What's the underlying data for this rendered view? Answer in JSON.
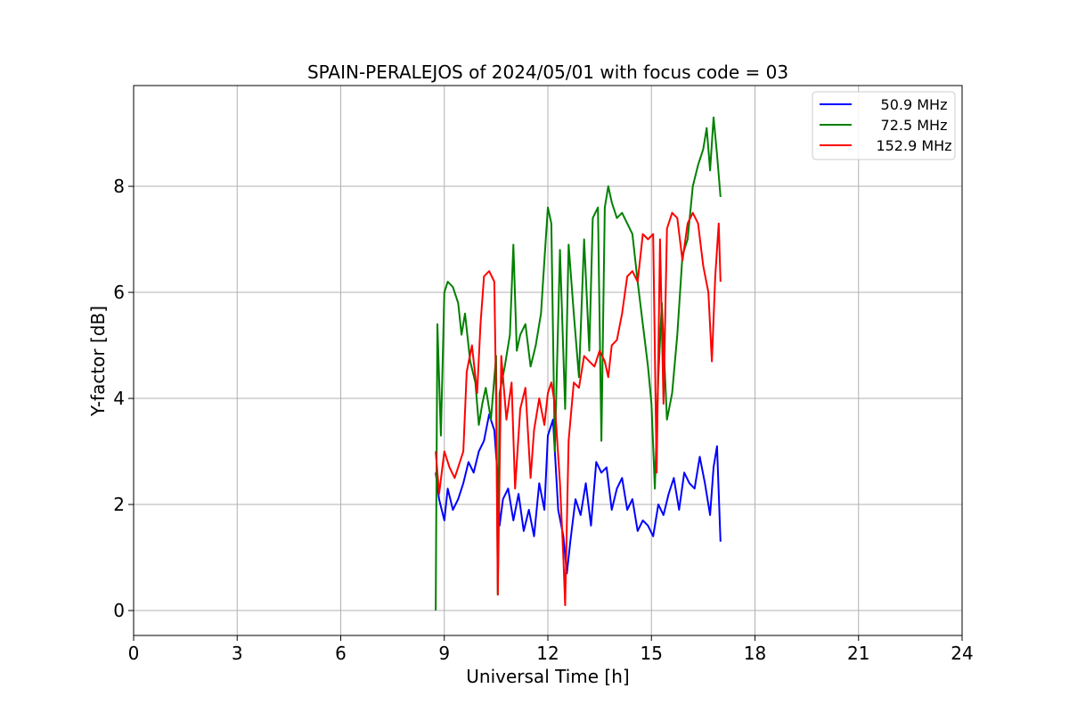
{
  "chart_data": {
    "type": "line",
    "title": "SPAIN-PERALEJOS of 2024/05/01 with focus code = 03",
    "xlabel": "Universal Time [h]",
    "ylabel": "Y-factor [dB]",
    "xlim": [
      0,
      24
    ],
    "ylim": [
      -0.47,
      9.9
    ],
    "xticks": [
      0,
      3,
      6,
      9,
      12,
      15,
      18,
      21,
      24
    ],
    "yticks": [
      0,
      2,
      4,
      6,
      8
    ],
    "grid": true,
    "legend_position": "top-right",
    "series": [
      {
        "name": "50.9 MHz",
        "color": "#0000ff",
        "x": [
          8.75,
          8.85,
          9.0,
          9.1,
          9.25,
          9.4,
          9.55,
          9.7,
          9.85,
          10.0,
          10.15,
          10.3,
          10.45,
          10.55,
          10.6,
          10.7,
          10.85,
          11.0,
          11.15,
          11.3,
          11.45,
          11.6,
          11.75,
          11.9,
          12.0,
          12.15,
          12.3,
          12.45,
          12.55,
          12.65,
          12.8,
          12.95,
          13.1,
          13.25,
          13.4,
          13.55,
          13.7,
          13.85,
          14.0,
          14.15,
          14.3,
          14.45,
          14.6,
          14.75,
          14.9,
          15.05,
          15.2,
          15.35,
          15.5,
          15.65,
          15.8,
          15.95,
          16.1,
          16.25,
          16.4,
          16.55,
          16.7,
          16.8,
          16.9,
          17.0
        ],
        "y": [
          2.6,
          2.1,
          1.7,
          2.3,
          1.9,
          2.1,
          2.4,
          2.8,
          2.6,
          3.0,
          3.2,
          3.7,
          3.4,
          2.5,
          1.6,
          2.1,
          2.3,
          1.7,
          2.2,
          1.5,
          1.9,
          1.4,
          2.4,
          1.9,
          3.3,
          3.6,
          1.9,
          1.4,
          0.7,
          1.3,
          2.1,
          1.8,
          2.4,
          1.6,
          2.8,
          2.6,
          2.7,
          1.9,
          2.3,
          2.5,
          1.9,
          2.1,
          1.5,
          1.7,
          1.6,
          1.4,
          2.0,
          1.8,
          2.2,
          2.5,
          1.9,
          2.6,
          2.4,
          2.3,
          2.9,
          2.4,
          1.8,
          2.7,
          3.1,
          1.3
        ]
      },
      {
        "name": "72.5 MHz",
        "color": "#008000",
        "x": [
          8.75,
          8.8,
          8.9,
          9.0,
          9.1,
          9.25,
          9.4,
          9.5,
          9.6,
          9.75,
          9.9,
          10.0,
          10.1,
          10.2,
          10.35,
          10.5,
          10.55,
          10.6,
          10.75,
          10.9,
          11.0,
          11.1,
          11.2,
          11.35,
          11.5,
          11.65,
          11.8,
          11.9,
          12.0,
          12.1,
          12.2,
          12.35,
          12.5,
          12.6,
          12.75,
          12.9,
          13.05,
          13.2,
          13.3,
          13.45,
          13.55,
          13.65,
          13.75,
          13.85,
          14.0,
          14.15,
          14.3,
          14.45,
          14.6,
          14.75,
          14.9,
          15.0,
          15.1,
          15.2,
          15.3,
          15.45,
          15.6,
          15.75,
          15.9,
          16.05,
          16.2,
          16.35,
          16.5,
          16.6,
          16.7,
          16.8,
          16.9,
          17.0
        ],
        "y": [
          0.0,
          5.4,
          3.3,
          6.0,
          6.2,
          6.1,
          5.8,
          5.2,
          5.6,
          4.7,
          4.3,
          3.5,
          3.9,
          4.2,
          3.6,
          4.8,
          0.3,
          4.1,
          4.6,
          5.2,
          6.9,
          4.9,
          5.2,
          5.4,
          4.6,
          5.0,
          5.6,
          6.6,
          7.6,
          7.3,
          3.0,
          6.8,
          3.8,
          6.9,
          5.6,
          4.4,
          7.0,
          4.9,
          7.4,
          7.6,
          3.2,
          7.6,
          8.0,
          7.7,
          7.4,
          7.5,
          7.3,
          7.1,
          6.2,
          5.4,
          4.6,
          3.9,
          2.3,
          4.4,
          5.8,
          3.6,
          4.1,
          5.2,
          6.7,
          7.0,
          8.0,
          8.4,
          8.7,
          9.1,
          8.3,
          9.3,
          8.6,
          7.8
        ]
      },
      {
        "name": "152.9 MHz",
        "color": "#ff0000",
        "x": [
          8.75,
          8.85,
          9.0,
          9.15,
          9.3,
          9.45,
          9.55,
          9.65,
          9.8,
          9.95,
          10.05,
          10.15,
          10.3,
          10.45,
          10.5,
          10.55,
          10.65,
          10.8,
          10.95,
          11.05,
          11.2,
          11.35,
          11.5,
          11.6,
          11.75,
          11.9,
          12.0,
          12.1,
          12.2,
          12.35,
          12.45,
          12.5,
          12.6,
          12.75,
          12.9,
          13.05,
          13.2,
          13.35,
          13.5,
          13.65,
          13.75,
          13.85,
          14.0,
          14.15,
          14.3,
          14.45,
          14.6,
          14.75,
          14.9,
          15.05,
          15.15,
          15.25,
          15.35,
          15.45,
          15.6,
          15.75,
          15.9,
          16.05,
          16.2,
          16.35,
          16.5,
          16.65,
          16.75,
          16.85,
          16.95,
          17.0
        ],
        "y": [
          3.0,
          2.2,
          3.0,
          2.7,
          2.5,
          2.8,
          3.0,
          4.5,
          5.0,
          4.1,
          5.4,
          6.3,
          6.4,
          6.2,
          4.0,
          0.3,
          4.8,
          3.6,
          4.3,
          2.3,
          3.8,
          4.2,
          2.5,
          3.4,
          4.0,
          3.5,
          4.1,
          4.3,
          3.9,
          2.4,
          1.0,
          0.1,
          3.2,
          4.3,
          4.2,
          4.8,
          4.7,
          4.6,
          4.9,
          4.7,
          4.4,
          5.0,
          5.1,
          5.6,
          6.3,
          6.4,
          6.2,
          7.1,
          7.0,
          7.1,
          2.6,
          7.0,
          3.9,
          7.2,
          7.5,
          7.4,
          6.6,
          7.3,
          7.5,
          7.3,
          6.5,
          6.0,
          4.7,
          6.3,
          7.3,
          6.2
        ]
      }
    ]
  }
}
